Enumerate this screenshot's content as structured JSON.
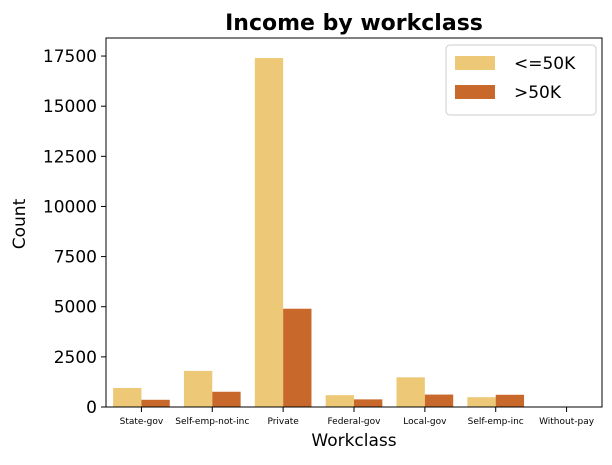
{
  "chart_data": {
    "type": "bar",
    "title": "Income by workclass",
    "xlabel": "Workclass",
    "ylabel": "Count",
    "categories": [
      "State-gov",
      "Self-emp-not-inc",
      "Private",
      "Federal-gov",
      "Local-gov",
      "Self-emp-inc",
      "Without-pay"
    ],
    "series": [
      {
        "name": "<=50K",
        "color": "#EDC977",
        "values": [
          950,
          1800,
          17400,
          590,
          1480,
          490,
          15
        ]
      },
      {
        "name": ">50K",
        "color": "#C8692B",
        "values": [
          360,
          760,
          4900,
          380,
          620,
          610,
          0
        ]
      }
    ],
    "ylim": [
      0,
      18400
    ],
    "yticks": [
      0,
      2500,
      5000,
      7500,
      10000,
      12500,
      15000,
      17500
    ],
    "ytick_labels": [
      "0",
      "2500",
      "5000",
      "7500",
      "10000",
      "12500",
      "15000",
      "17500"
    ],
    "legend_position": "top-right",
    "grid": false
  }
}
